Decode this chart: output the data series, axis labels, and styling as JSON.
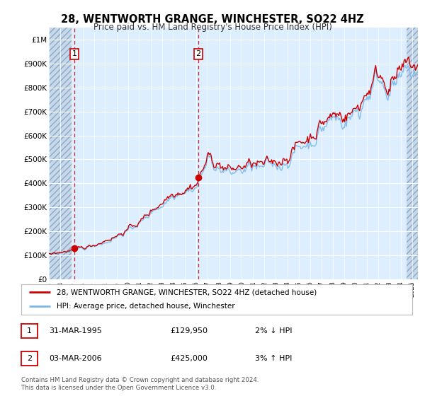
{
  "title": "28, WENTWORTH GRANGE, WINCHESTER, SO22 4HZ",
  "subtitle": "Price paid vs. HM Land Registry's House Price Index (HPI)",
  "legend_line1": "28, WENTWORTH GRANGE, WINCHESTER, SO22 4HZ (detached house)",
  "legend_line2": "HPI: Average price, detached house, Winchester",
  "annotation1": {
    "label": "1",
    "date": "31-MAR-1995",
    "price": "£129,950",
    "pct": "2% ↓ HPI"
  },
  "annotation2": {
    "label": "2",
    "date": "03-MAR-2006",
    "price": "£425,000",
    "pct": "3% ↑ HPI"
  },
  "footnote": "Contains HM Land Registry data © Crown copyright and database right 2024.\nThis data is licensed under the Open Government Licence v3.0.",
  "hpi_color": "#7ab8e8",
  "price_color": "#cc0000",
  "background_color": "#ffffff",
  "plot_bg_color": "#ddeeff",
  "ylim": [
    0,
    1050000
  ],
  "yticks": [
    0,
    100000,
    200000,
    300000,
    400000,
    500000,
    600000,
    700000,
    800000,
    900000,
    1000000
  ],
  "ytick_labels": [
    "£0",
    "£100K",
    "£200K",
    "£300K",
    "£400K",
    "£500K",
    "£600K",
    "£700K",
    "£800K",
    "£900K",
    "£1M"
  ],
  "sale1_x": 1995.25,
  "sale1_y": 129950,
  "sale2_x": 2006.17,
  "sale2_y": 425000,
  "xlim_left": 1993.0,
  "xlim_right": 2025.5,
  "hatch_right_start": 2024.5,
  "hatch_left_end": 1995.08
}
